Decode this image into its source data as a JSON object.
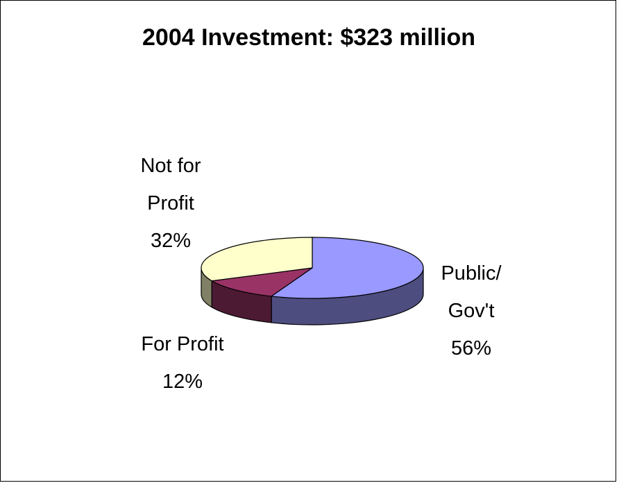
{
  "chart_data": {
    "type": "pie",
    "title": "2004 Investment: $323 million",
    "slices": [
      {
        "label_lines": [
          "Public/",
          "Gov't",
          "56%"
        ],
        "name": "Public/Gov't",
        "value": 56,
        "color": "#9999ff",
        "side_color": "#4d4d80"
      },
      {
        "label_lines": [
          "For Profit",
          "12%"
        ],
        "name": "For Profit",
        "value": 12,
        "color": "#993366",
        "side_color": "#4d1a33"
      },
      {
        "label_lines": [
          "Not for",
          "Profit",
          "32%"
        ],
        "name": "Not for Profit",
        "value": 32,
        "color": "#ffffcc",
        "side_color": "#808066"
      }
    ],
    "legend": "none",
    "three_d": true
  }
}
